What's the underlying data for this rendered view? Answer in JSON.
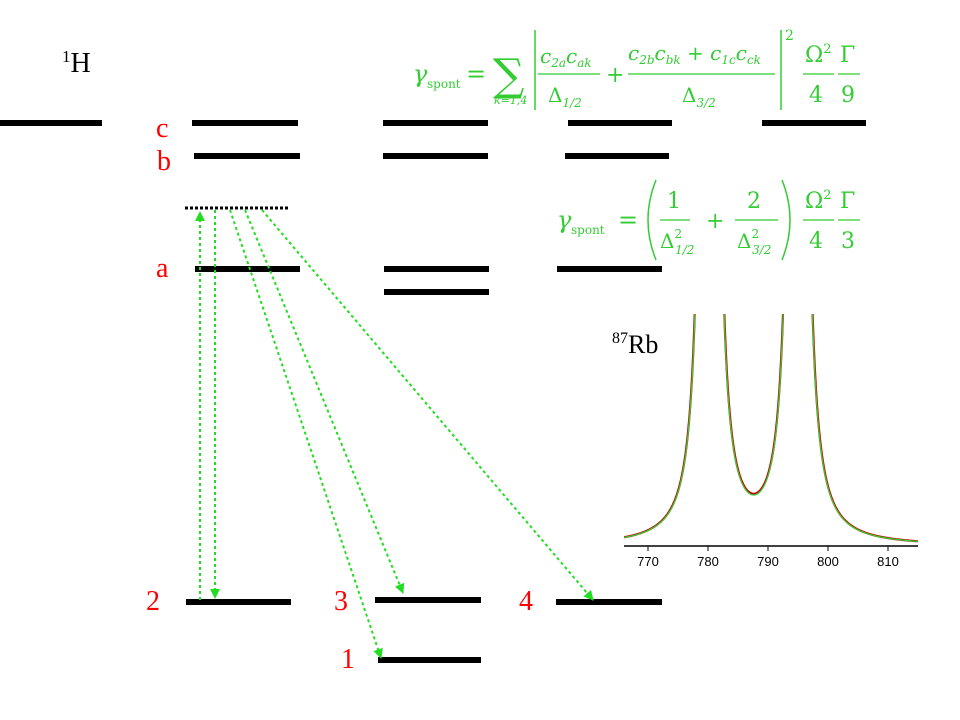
{
  "colors": {
    "level": "#000000",
    "state_label": "#ff0000",
    "formula": "#33cc33",
    "arrow": "#22dd22",
    "curve_red": "#cc0000",
    "curve_green": "#33cc33"
  },
  "isotopes": {
    "hydrogen": {
      "mass": "1",
      "symbol": "H"
    },
    "rubidium": {
      "mass": "87",
      "symbol": "Rb"
    }
  },
  "states": {
    "c": "c",
    "b": "b",
    "a": "a",
    "g1": "1",
    "g2": "2",
    "g3": "3",
    "g4": "4"
  },
  "formula1": {
    "gamma": "γ",
    "sub": "spont",
    "eq": "=",
    "sum": "∑",
    "sum_under": "k=1,4",
    "t1_num": [
      "c",
      "2a",
      "c",
      "ak"
    ],
    "t1_den": [
      "Δ",
      "1/2"
    ],
    "plus": "+",
    "t2_num": [
      "c",
      "2b",
      "c",
      "bk",
      " + ",
      "c",
      "1c",
      "c",
      "ck"
    ],
    "t2_den": [
      "Δ",
      "3/2"
    ],
    "exp": "2",
    "omega": "Ω",
    "omega_exp": "2",
    "four": "4",
    "Gamma": "Γ",
    "nine": "9"
  },
  "formula2": {
    "gamma": "γ",
    "sub": "spont",
    "eq": "=",
    "one": "1",
    "two": "2",
    "delta": "Δ",
    "d1_sub": "1/2",
    "d2_sub": "3/2",
    "dexp": "2",
    "plus": "+",
    "omega": "Ω",
    "omega_exp": "2",
    "four": "4",
    "Gamma": "Γ",
    "three": "3"
  },
  "chart_data": {
    "type": "line",
    "title": "",
    "xlabel": "",
    "ylabel": "",
    "xlim": [
      766,
      815
    ],
    "ylim": [
      0,
      1
    ],
    "x_ticks": [
      770,
      780,
      790,
      800,
      810
    ],
    "grid": false,
    "legend": "none",
    "resonances": [
      794.98,
      780.24
    ],
    "series": [
      {
        "color": "#cc0000",
        "min_between_peaks": 0.225,
        "baseline_left": 0.05,
        "baseline_right": 0.02
      },
      {
        "color": "#33cc33",
        "min_between_peaks": 0.22,
        "baseline_left": 0.035,
        "baseline_right": 0.015
      }
    ]
  }
}
